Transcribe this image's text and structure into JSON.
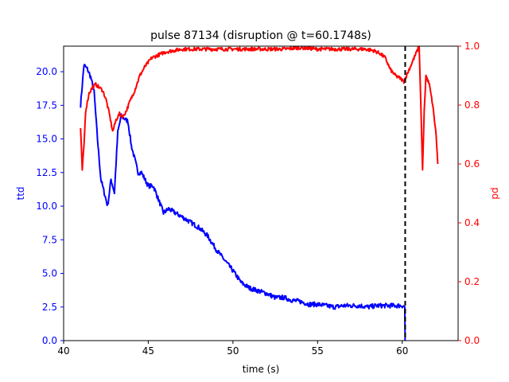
{
  "chart_data": {
    "type": "line",
    "title": "pulse 87134 (disruption @ t=60.1748s)",
    "xlabel": "time (s)",
    "ylabel_left": "ttd",
    "ylabel_right": "pd",
    "xlim": [
      40,
      63.3
    ],
    "ylim_left": [
      0,
      21.9
    ],
    "ylim_right": [
      0,
      1.0
    ],
    "xticks": [
      "40",
      "45",
      "50",
      "55",
      "60"
    ],
    "yticks_left": [
      "0.0",
      "2.5",
      "5.0",
      "7.5",
      "10.0",
      "12.5",
      "15.0",
      "17.5",
      "20.0"
    ],
    "yticks_right": [
      "0.0",
      "0.2",
      "0.4",
      "0.6",
      "0.8",
      "1.0"
    ],
    "colors": {
      "left_axis": "#0000ff",
      "right_axis": "#ff0000",
      "disruption_line": "#000000"
    },
    "disruption_time": 60.1748,
    "grid": false,
    "series": [
      {
        "axis": "left",
        "color": "#0000ff",
        "x": [
          41.0,
          41.2,
          41.4,
          41.6,
          41.8,
          42.0,
          42.2,
          42.4,
          42.6,
          42.8,
          43.0,
          43.2,
          43.4,
          43.6,
          43.8,
          44.0,
          44.2,
          44.4,
          44.6,
          44.8,
          45.0,
          45.3,
          45.6,
          45.9,
          46.2,
          46.6,
          47.0,
          47.5,
          48.0,
          48.5,
          49.0,
          49.5,
          50.0,
          50.5,
          51.0,
          51.5,
          52.0,
          52.5,
          53.0,
          53.5,
          54.0,
          54.5,
          55.0,
          55.5,
          56.0,
          56.5,
          57.0,
          57.5,
          58.0,
          58.5,
          59.0,
          59.5,
          60.0,
          60.15,
          60.17
        ],
        "y": [
          17.5,
          20.5,
          20.2,
          19.6,
          18.5,
          15.0,
          12.0,
          11.0,
          10.0,
          12.0,
          11.0,
          15.5,
          16.7,
          16.5,
          16.3,
          14.5,
          13.5,
          12.5,
          12.5,
          12.0,
          11.5,
          11.5,
          10.5,
          9.5,
          9.8,
          9.5,
          9.2,
          8.8,
          8.4,
          7.8,
          6.8,
          6.0,
          5.2,
          4.3,
          3.9,
          3.7,
          3.5,
          3.2,
          3.2,
          3.0,
          2.9,
          2.7,
          2.7,
          2.6,
          2.5,
          2.6,
          2.6,
          2.6,
          2.5,
          2.6,
          2.6,
          2.6,
          2.6,
          2.5,
          0.0
        ]
      },
      {
        "axis": "right",
        "color": "#ff0000",
        "x": [
          41.0,
          41.1,
          41.2,
          41.3,
          41.5,
          41.7,
          41.9,
          42.1,
          42.3,
          42.5,
          42.7,
          42.9,
          43.1,
          43.3,
          43.5,
          43.7,
          43.9,
          44.2,
          44.5,
          44.8,
          45.2,
          45.6,
          46.0,
          46.5,
          47.0,
          48.0,
          49.0,
          50.0,
          51.0,
          52.0,
          53.0,
          54.0,
          55.0,
          56.0,
          57.0,
          57.8,
          58.3,
          58.7,
          59.0,
          59.3,
          59.6,
          59.9,
          60.1,
          61.0,
          61.1,
          61.2,
          61.3,
          61.4,
          61.6,
          61.8,
          62.0,
          62.1
        ],
        "y": [
          0.72,
          0.58,
          0.66,
          0.78,
          0.84,
          0.86,
          0.87,
          0.86,
          0.85,
          0.82,
          0.77,
          0.71,
          0.75,
          0.77,
          0.76,
          0.78,
          0.81,
          0.85,
          0.9,
          0.93,
          0.96,
          0.97,
          0.98,
          0.985,
          0.99,
          0.99,
          0.99,
          0.99,
          0.99,
          0.99,
          0.99,
          0.995,
          0.99,
          0.99,
          0.99,
          0.99,
          0.985,
          0.975,
          0.96,
          0.92,
          0.9,
          0.89,
          0.88,
          1.0,
          0.8,
          0.58,
          0.78,
          0.9,
          0.87,
          0.8,
          0.7,
          0.6
        ]
      }
    ]
  }
}
